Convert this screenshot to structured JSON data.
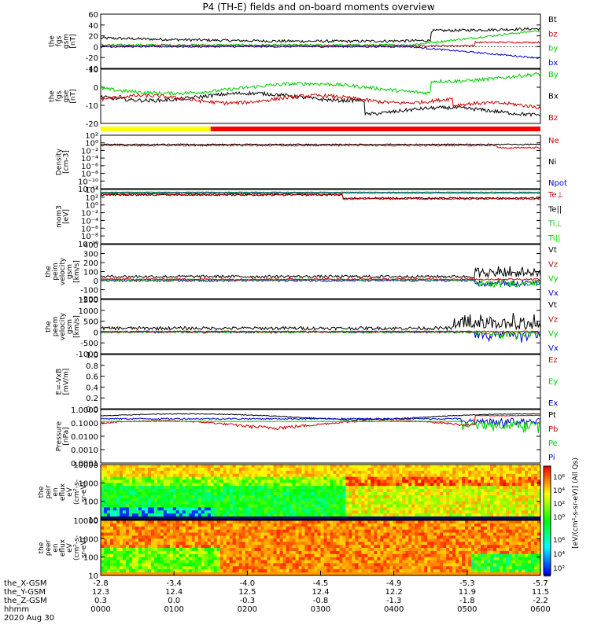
{
  "title": "P4 (TH-E) fields and on-board moments overview",
  "chart_data": {
    "type": "line",
    "panels": [
      {
        "id": "fgs-gsm",
        "ylabel": [
          "the",
          "fgs",
          "gsm",
          "[nT]"
        ],
        "ylim": [
          -40,
          60
        ],
        "yticks": [
          "60",
          "40",
          "20",
          "0",
          "-20",
          "-40"
        ],
        "legend": [
          {
            "name": "Bt",
            "color": "#000000"
          },
          {
            "name": "bz",
            "color": "#cc0000"
          },
          {
            "name": "by",
            "color": "#00cc00"
          },
          {
            "name": "bx",
            "color": "#0000cc"
          }
        ]
      },
      {
        "id": "fgs-gse",
        "ylabel": [
          "the",
          "fgs",
          "gse",
          "[nT]"
        ],
        "ylim": [
          -25,
          20
        ],
        "yticks": [
          "10",
          "0",
          "-10",
          "-20"
        ],
        "legend": [
          {
            "name": "By",
            "color": "#00cc00"
          },
          {
            "name": "Bx",
            "color": "#000000"
          },
          {
            "name": "Bz",
            "color": "#cc0000"
          }
        ]
      },
      {
        "id": "density",
        "ylabel": [
          "Density",
          "[cm-3]"
        ],
        "yticks": [
          "10²",
          "10⁰",
          "10⁻²",
          "10⁻⁴",
          "10⁻⁶",
          "10⁻⁸",
          "10⁻¹⁰",
          "10⁻¹²"
        ],
        "legend": [
          {
            "name": "Ne",
            "color": "#cc0000"
          },
          {
            "name": "Ni",
            "color": "#000000"
          },
          {
            "name": "Npot",
            "color": "#0000cc"
          }
        ]
      },
      {
        "id": "temperature",
        "ylabel": [
          "mom3",
          "[eV]"
        ],
        "yticks": [
          "10⁴",
          "10²",
          "10⁰",
          "10⁻²",
          "10⁻⁴",
          "10⁻⁶",
          "10⁻⁸",
          "10⁻¹⁰"
        ],
        "legend": [
          {
            "name": "Te⊥",
            "color": "#cc0000"
          },
          {
            "name": "Te||",
            "color": "#000000"
          },
          {
            "name": "Ti⊥",
            "color": "#00cc00"
          },
          {
            "name": "Ti||",
            "color": "#00cc00"
          }
        ]
      },
      {
        "id": "peim-velocity",
        "ylabel": [
          "the",
          "peim",
          "velocity",
          "gsm",
          "[km/s]"
        ],
        "ylim": [
          -200,
          400
        ],
        "yticks": [
          "400",
          "300",
          "200",
          "100",
          "0",
          "-100",
          "-200"
        ],
        "legend": [
          {
            "name": "Vt",
            "color": "#000000"
          },
          {
            "name": "Vz",
            "color": "#cc0000"
          },
          {
            "name": "Vy",
            "color": "#00cc00"
          },
          {
            "name": "Vx",
            "color": "#0000cc"
          }
        ]
      },
      {
        "id": "peem-velocity",
        "ylabel": [
          "the",
          "peem",
          "velocity",
          "gsm",
          "[km/s]"
        ],
        "ylim": [
          -1000,
          1500
        ],
        "yticks": [
          "1500",
          "1000",
          "500",
          "0",
          "-500",
          "-1000"
        ],
        "legend": [
          {
            "name": "Vt",
            "color": "#000000"
          },
          {
            "name": "Vz",
            "color": "#cc0000"
          },
          {
            "name": "Vy",
            "color": "#00cc00"
          },
          {
            "name": "Vx",
            "color": "#0000cc"
          }
        ]
      },
      {
        "id": "efield",
        "ylabel": [
          "E=-VxB",
          "[mV/m]"
        ],
        "ylim": [
          0,
          1
        ],
        "yticks": [
          "1.0",
          "0.8",
          "0.6",
          "0.4",
          "0.2",
          "0.0"
        ],
        "legend": [
          {
            "name": "Ez",
            "color": "#cc0000"
          },
          {
            "name": "Ey",
            "color": "#00cc00"
          },
          {
            "name": "Ex",
            "color": "#0000cc"
          }
        ]
      },
      {
        "id": "pressure",
        "ylabel": [
          "Pressure",
          "[nPa]"
        ],
        "ylim": [
          0.0001,
          1
        ],
        "yticks": [
          "1.0000",
          "0.1000",
          "0.0100",
          "0.0010",
          "0.0001"
        ],
        "legend": [
          {
            "name": "Pt",
            "color": "#000000"
          },
          {
            "name": "Pb",
            "color": "#cc0000"
          },
          {
            "name": "Pe",
            "color": "#00cc00"
          },
          {
            "name": "Pi",
            "color": "#0000cc"
          }
        ]
      },
      {
        "id": "peir-spectrogram",
        "ylabel": [
          "the",
          "peir",
          "en",
          "eflux",
          "eV",
          "(cm²-s-",
          "sr-eV)"
        ],
        "yticks": [
          "10000",
          "1000",
          "100",
          "10"
        ],
        "type": "heatmap"
      },
      {
        "id": "peer-spectrogram",
        "ylabel": [
          "the",
          "peer",
          "en",
          "eflux",
          "eV",
          "(cm²-s-",
          "sr-eV)"
        ],
        "yticks": [
          "10000",
          "1000",
          "100",
          "10"
        ],
        "type": "heatmap"
      }
    ],
    "colorbar": {
      "label": "[eV/(cm²-s-sr-eV)] (All Qs)",
      "ticks_top": [
        "10⁶",
        "10⁴",
        "10²",
        "10⁰"
      ],
      "ticks_bottom": [
        "10⁶",
        "10⁴",
        "10²"
      ]
    },
    "x_axis": {
      "rows": [
        {
          "label": "the_X-GSM",
          "values": [
            "-2.8",
            "-3.4",
            "-4.0",
            "-4.5",
            "-4.9",
            "-5.3",
            "-5.7"
          ]
        },
        {
          "label": "the_Y-GSM",
          "values": [
            "12.3",
            "12.4",
            "12.5",
            "12.4",
            "12.2",
            "11.9",
            "11.5"
          ]
        },
        {
          "label": "the_Z-GSM",
          "values": [
            "0.3",
            "0.0",
            "-0.3",
            "-0.8",
            "-1.3",
            "-1.8",
            "-2.2"
          ]
        },
        {
          "label": "hhmm",
          "values": [
            "0000",
            "0100",
            "0200",
            "0300",
            "0400",
            "0500",
            "0600"
          ]
        }
      ],
      "date": "2020 Aug 30",
      "range_hours": [
        0,
        6
      ]
    },
    "mode_bar": {
      "segments": [
        {
          "from": 0,
          "to": 1.5,
          "color": "#ffff00"
        },
        {
          "from": 1.5,
          "to": 6,
          "color": "#ff0000"
        }
      ]
    }
  }
}
